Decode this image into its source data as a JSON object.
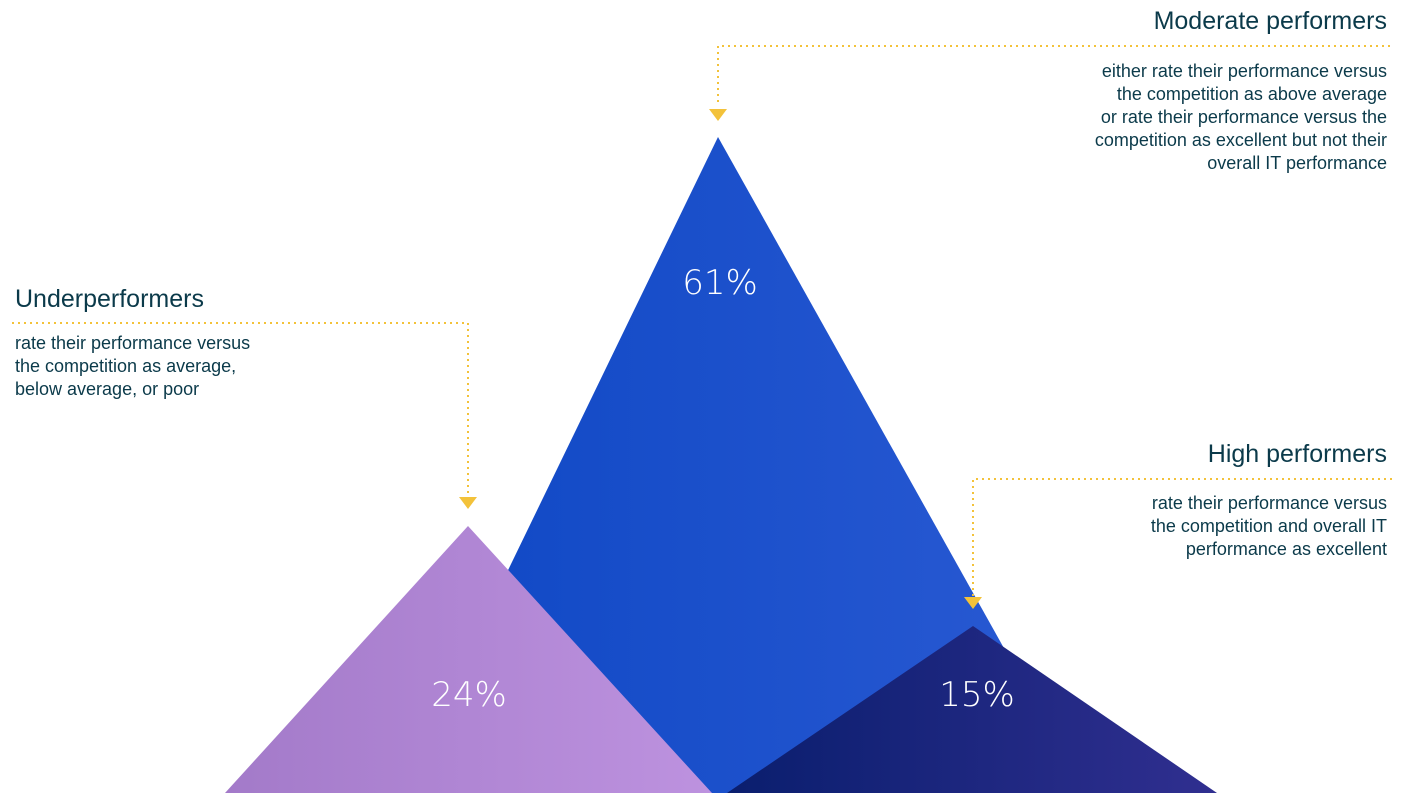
{
  "colors": {
    "moderate_light": "#1e55cf",
    "moderate_dark": "#0e47c4",
    "under_light": "#bb90dd",
    "under_dark": "#a37ac9",
    "high_light": "#2e2f8f",
    "high_dark": "#0a1e6e",
    "connector": "#f3c23a",
    "text": "#0b3a4a"
  },
  "segments": [
    {
      "id": "moderate",
      "title": "Moderate performers",
      "percent": "61%",
      "value": 61,
      "description": [
        "either rate their performance versus",
        "the competition as above average",
        "or rate their performance versus the",
        "competition as excellent but not their",
        "overall IT performance"
      ]
    },
    {
      "id": "under",
      "title": "Underperformers",
      "percent": "24%",
      "value": 24,
      "description": [
        "rate their performance versus",
        "the competition as average,",
        "below average, or poor"
      ]
    },
    {
      "id": "high",
      "title": "High performers",
      "percent": "15%",
      "value": 15,
      "description": [
        "rate their performance versus",
        "the competition and overall IT",
        "performance as excellent"
      ]
    }
  ]
}
